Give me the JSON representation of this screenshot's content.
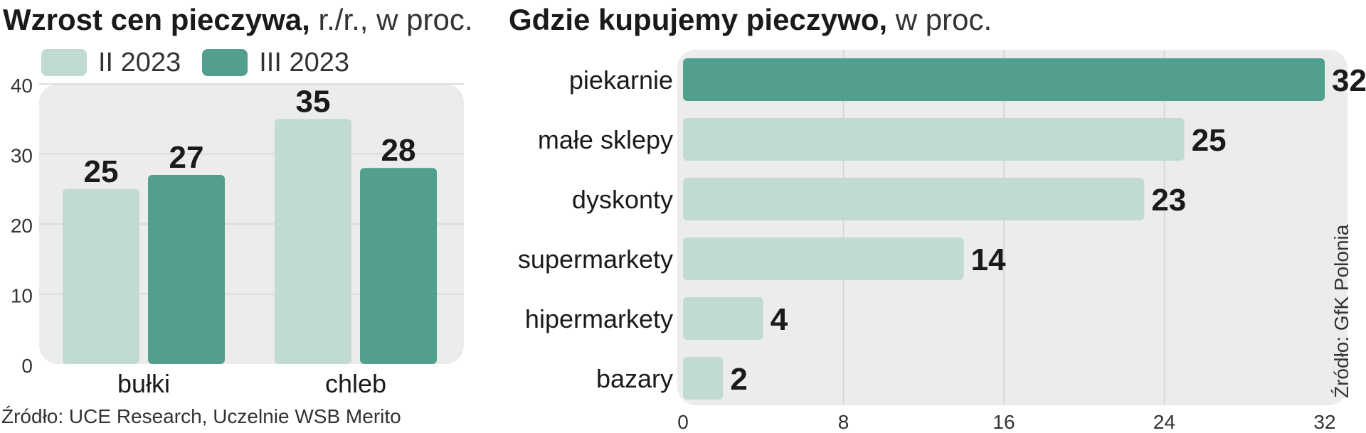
{
  "left_chart": {
    "title_bold": "Wzrost cen pieczywa,",
    "title_rest": " r./r., w proc.",
    "source": "Źródło: UCE Research, Uczelnie WSB Merito"
  },
  "right_chart": {
    "title_bold": "Gdzie kupujemy pieczywo,",
    "title_rest": " w proc.",
    "source": "Źródło: GfK Polonia"
  },
  "colors": {
    "light": "#c1dbd4",
    "dark": "#529e8f",
    "panel": "#ececeb"
  },
  "chart_data": [
    {
      "type": "bar",
      "title": "Wzrost cen pieczywa, r./r., w proc.",
      "categories": [
        "bułki",
        "chleb"
      ],
      "series": [
        {
          "name": "II 2023",
          "values": [
            25,
            35
          ],
          "color": "#c1dbd4"
        },
        {
          "name": "III 2023",
          "values": [
            27,
            28
          ],
          "color": "#529e8f"
        }
      ],
      "ylim": [
        0,
        40
      ],
      "yticks": [
        0,
        10,
        20,
        30,
        40
      ],
      "grid": true,
      "legend": "top-left"
    },
    {
      "type": "bar",
      "orientation": "horizontal",
      "title": "Gdzie kupujemy pieczywo, w proc.",
      "categories": [
        "piekarnie",
        "małe sklepy",
        "dyskonty",
        "supermarkety",
        "hipermarkety",
        "bazary"
      ],
      "values": [
        32,
        25,
        23,
        14,
        4,
        2
      ],
      "highlight_index": 0,
      "xlim": [
        0,
        32
      ],
      "xticks": [
        0,
        8,
        16,
        24,
        32
      ],
      "grid": true
    }
  ]
}
